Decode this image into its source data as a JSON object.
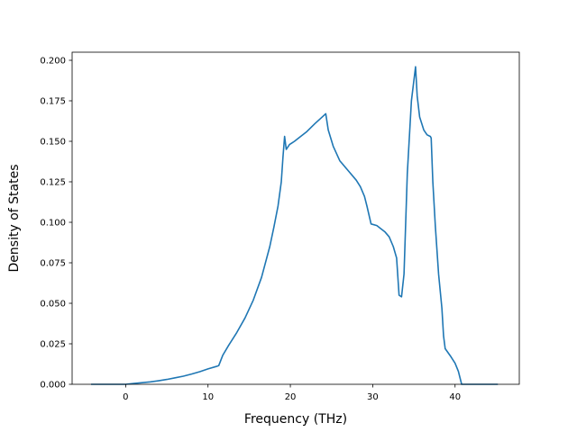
{
  "chart_data": {
    "type": "line",
    "title": "",
    "xlabel": "Frequency (THz)",
    "ylabel": "Density of States",
    "xlim": [
      -6.5,
      47.8
    ],
    "ylim": [
      0.0,
      0.205
    ],
    "xticks": [
      {
        "value": 0,
        "label": "0"
      },
      {
        "value": 10,
        "label": "10"
      },
      {
        "value": 20,
        "label": "20"
      },
      {
        "value": 30,
        "label": "30"
      },
      {
        "value": 40,
        "label": "40"
      }
    ],
    "yticks": [
      {
        "value": 0.0,
        "label": "0.000"
      },
      {
        "value": 0.025,
        "label": "0.025"
      },
      {
        "value": 0.05,
        "label": "0.050"
      },
      {
        "value": 0.075,
        "label": "0.075"
      },
      {
        "value": 0.1,
        "label": "0.100"
      },
      {
        "value": 0.125,
        "label": "0.125"
      },
      {
        "value": 0.15,
        "label": "0.150"
      },
      {
        "value": 0.175,
        "label": "0.175"
      },
      {
        "value": 0.2,
        "label": "0.200"
      }
    ],
    "grid": false,
    "series": [
      {
        "color": "#1f77b4",
        "x": [
          -4.2,
          -2,
          0,
          1,
          2,
          3,
          4,
          5,
          6,
          7,
          8,
          9,
          10,
          11,
          11.3,
          11.8,
          12.5,
          13.5,
          14.5,
          15.5,
          16.5,
          17.5,
          18,
          18.5,
          18.9,
          19.1,
          19.3,
          19.5,
          19.9,
          20.2,
          20.5,
          21,
          22,
          23,
          24.3,
          24.6,
          25.2,
          26,
          27,
          28,
          28.5,
          29,
          29.3,
          29.8,
          30.5,
          31.5,
          32,
          32.5,
          32.9,
          33.2,
          33.5,
          33.8,
          34.2,
          34.7,
          35.2,
          35.4,
          35.7,
          36.2,
          36.6,
          37,
          37.1,
          37.3,
          37.6,
          38,
          38.4,
          38.6,
          38.8,
          39.5,
          40,
          40.4,
          40.8,
          41.2,
          42,
          45.2
        ],
        "y": [
          0.0,
          0.0,
          0.0,
          0.0005,
          0.001,
          0.0015,
          0.0022,
          0.003,
          0.004,
          0.005,
          0.0063,
          0.0078,
          0.0095,
          0.011,
          0.0115,
          0.018,
          0.024,
          0.032,
          0.041,
          0.052,
          0.066,
          0.085,
          0.097,
          0.11,
          0.125,
          0.14,
          0.153,
          0.145,
          0.148,
          0.149,
          0.15,
          0.152,
          0.156,
          0.161,
          0.167,
          0.157,
          0.147,
          0.138,
          0.132,
          0.126,
          0.122,
          0.116,
          0.11,
          0.099,
          0.098,
          0.094,
          0.091,
          0.085,
          0.078,
          0.055,
          0.054,
          0.068,
          0.13,
          0.175,
          0.196,
          0.178,
          0.165,
          0.157,
          0.154,
          0.153,
          0.152,
          0.125,
          0.098,
          0.068,
          0.047,
          0.03,
          0.022,
          0.017,
          0.013,
          0.008,
          0.0,
          0.0,
          0.0,
          0.0
        ]
      }
    ]
  }
}
